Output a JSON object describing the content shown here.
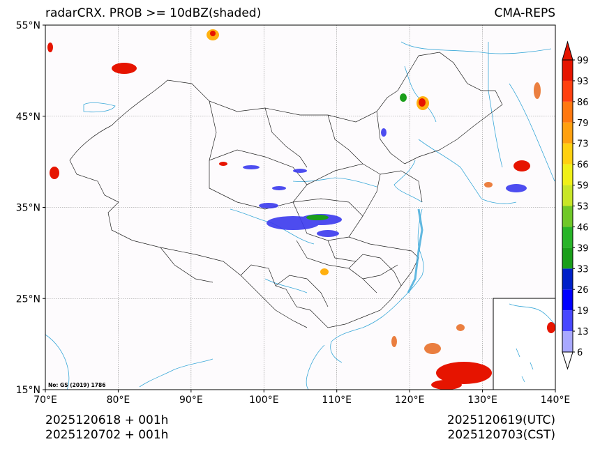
{
  "title_left": "radarCRX. PROB >= 10dBZ(shaded)",
  "title_right": "CMA-REPS",
  "map": {
    "lon_min": 70,
    "lon_max": 140,
    "lat_min": 15,
    "lat_max": 55,
    "lon_ticks": [
      {
        "value": 70,
        "label": "70°E"
      },
      {
        "value": 80,
        "label": "80°E"
      },
      {
        "value": 90,
        "label": "90°E"
      },
      {
        "value": 100,
        "label": "100°E"
      },
      {
        "value": 110,
        "label": "110°E"
      },
      {
        "value": 120,
        "label": "120°E"
      },
      {
        "value": 130,
        "label": "130°E"
      },
      {
        "value": 140,
        "label": "140°E"
      }
    ],
    "lat_ticks": [
      {
        "value": 15,
        "label": "15°N"
      },
      {
        "value": 25,
        "label": "25°N"
      },
      {
        "value": 35,
        "label": "35°N"
      },
      {
        "value": 45,
        "label": "45°N"
      },
      {
        "value": 55,
        "label": "55°N"
      }
    ],
    "watermark": "No: GS (2019) 1786"
  },
  "colorbar": {
    "labels": [
      "6",
      "13",
      "19",
      "26",
      "33",
      "39",
      "46",
      "53",
      "59",
      "66",
      "73",
      "79",
      "86",
      "93",
      "99"
    ],
    "colors": [
      "#ffffff",
      "#a8a8ff",
      "#4848ff",
      "#0000ff",
      "#0020c8",
      "#1a9e1a",
      "#28b428",
      "#70c828",
      "#c8e628",
      "#f0f018",
      "#ffd010",
      "#ffa010",
      "#ff7810",
      "#ff4010",
      "#e61400",
      "#e61400"
    ]
  },
  "footer": {
    "left_line1": "2025120618  +  001h",
    "left_line2": "2025120702  +  001h",
    "right_line1": "2025120619(UTC)",
    "right_line2": "2025120703(CST)"
  }
}
